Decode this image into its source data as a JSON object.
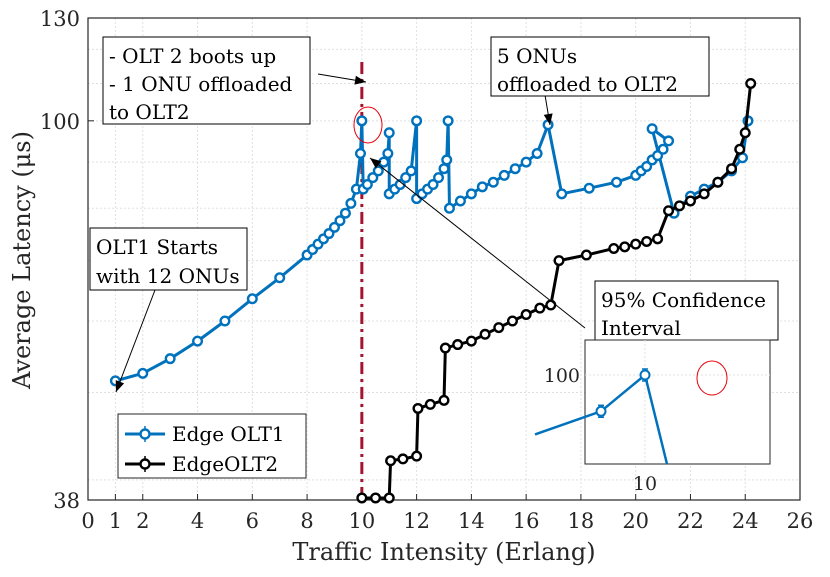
{
  "chart_data": {
    "type": "line",
    "xlabel": "Traffic Intensity (Erlang)",
    "ylabel": "Average Latency (μs)",
    "xlim": [
      0,
      26
    ],
    "ylim": [
      38,
      130
    ],
    "yscale": "log",
    "x_ticks": [
      "0",
      "1",
      "2",
      "4",
      "6",
      "8",
      "10",
      "12",
      "14",
      "16",
      "18",
      "20",
      "22",
      "24",
      "26"
    ],
    "y_ticks": [
      "38",
      "100",
      "130"
    ],
    "grid": true,
    "legend_position": "bottom-left",
    "series": [
      {
        "name": "Edge OLT1",
        "color": "#0072BD",
        "marker": "circle-errorbar",
        "points": [
          [
            1,
            51.5
          ],
          [
            2,
            52.5
          ],
          [
            3,
            54.5
          ],
          [
            4,
            57
          ],
          [
            5,
            60
          ],
          [
            6,
            63.5
          ],
          [
            7,
            67
          ],
          [
            8,
            71
          ],
          [
            8.2,
            72
          ],
          [
            8.4,
            73
          ],
          [
            8.6,
            74
          ],
          [
            8.8,
            75
          ],
          [
            9.0,
            76.2
          ],
          [
            9.2,
            77.5
          ],
          [
            9.4,
            79
          ],
          [
            9.6,
            81
          ],
          [
            9.8,
            84
          ],
          [
            9.95,
            92
          ],
          [
            10,
            100
          ],
          [
            10.05,
            84
          ],
          [
            10.2,
            85
          ],
          [
            10.4,
            86.5
          ],
          [
            10.6,
            88
          ],
          [
            10.8,
            90
          ],
          [
            10.95,
            92
          ],
          [
            11.0,
            97
          ],
          [
            11.0,
            83
          ],
          [
            11.2,
            84
          ],
          [
            11.4,
            85
          ],
          [
            11.6,
            86.5
          ],
          [
            11.8,
            88
          ],
          [
            12.0,
            100
          ],
          [
            12.0,
            82
          ],
          [
            12.2,
            83
          ],
          [
            12.4,
            84
          ],
          [
            12.6,
            85
          ],
          [
            12.8,
            86.5
          ],
          [
            13.0,
            88.5
          ],
          [
            13.1,
            90.5
          ],
          [
            13.15,
            100
          ],
          [
            13.2,
            80
          ],
          [
            13.6,
            81.5
          ],
          [
            14.0,
            83
          ],
          [
            14.4,
            84.5
          ],
          [
            14.8,
            85.5
          ],
          [
            15.2,
            87
          ],
          [
            15.6,
            88.5
          ],
          [
            16.0,
            90
          ],
          [
            16.4,
            92
          ],
          [
            16.8,
            99
          ],
          [
            17.3,
            83
          ],
          [
            18.3,
            84.2
          ],
          [
            19.3,
            85.5
          ],
          [
            20.0,
            87
          ],
          [
            20.2,
            88
          ],
          [
            20.4,
            89
          ],
          [
            20.6,
            90.5
          ],
          [
            20.8,
            91.5
          ],
          [
            21.0,
            93
          ],
          [
            21.2,
            95
          ],
          [
            20.6,
            98
          ],
          [
            21.4,
            79
          ],
          [
            22.0,
            82.5
          ],
          [
            22.5,
            84
          ],
          [
            23.0,
            85.5
          ],
          [
            23.5,
            88
          ],
          [
            23.9,
            91
          ],
          [
            24.1,
            100
          ]
        ]
      },
      {
        "name": "EdgeOLT2",
        "color": "#000000",
        "marker": "circle-errorbar",
        "points": [
          [
            10.0,
            38.2
          ],
          [
            10.5,
            38.2
          ],
          [
            11.0,
            38.2
          ],
          [
            11.05,
            42
          ],
          [
            11.5,
            42.2
          ],
          [
            12.0,
            42.5
          ],
          [
            12.05,
            48
          ],
          [
            12.5,
            48.5
          ],
          [
            13.0,
            49
          ],
          [
            13.05,
            56
          ],
          [
            13.5,
            56.5
          ],
          [
            14.0,
            57
          ],
          [
            14.5,
            58
          ],
          [
            15.0,
            59
          ],
          [
            15.5,
            60
          ],
          [
            16.0,
            61
          ],
          [
            16.5,
            62
          ],
          [
            16.9,
            62.5
          ],
          [
            17.2,
            70
          ],
          [
            18.2,
            71
          ],
          [
            19.2,
            72.2
          ],
          [
            19.6,
            72.5
          ],
          [
            20.0,
            73
          ],
          [
            20.4,
            73.5
          ],
          [
            20.8,
            74
          ],
          [
            21.2,
            79.5
          ],
          [
            21.6,
            80.5
          ],
          [
            22.0,
            81.5
          ],
          [
            22.5,
            83
          ],
          [
            23.0,
            85.5
          ],
          [
            23.5,
            88.5
          ],
          [
            23.8,
            93
          ],
          [
            24.0,
            97
          ],
          [
            24.2,
            110
          ]
        ]
      }
    ],
    "annotations": [
      {
        "lines": [
          "- OLT 2 boots up",
          "- 1 ONU offloaded",
          "to OLT2"
        ]
      },
      {
        "lines": [
          "5 ONUs",
          "offloaded to OLT2"
        ]
      },
      {
        "lines": [
          "OLT1 Starts",
          "with 12 ONUs"
        ]
      },
      {
        "lines": [
          "95% Confidence",
          "Interval"
        ]
      }
    ],
    "vertical_line": {
      "x": 10,
      "color": "#A2142F",
      "style": "dash-dot"
    },
    "inset": {
      "x_tick": "10",
      "y_tick": "100",
      "points": [
        [
          9.5,
          82
        ],
        [
          9.8,
          89
        ],
        [
          10.0,
          100
        ],
        [
          10.1,
          60
        ]
      ]
    }
  }
}
